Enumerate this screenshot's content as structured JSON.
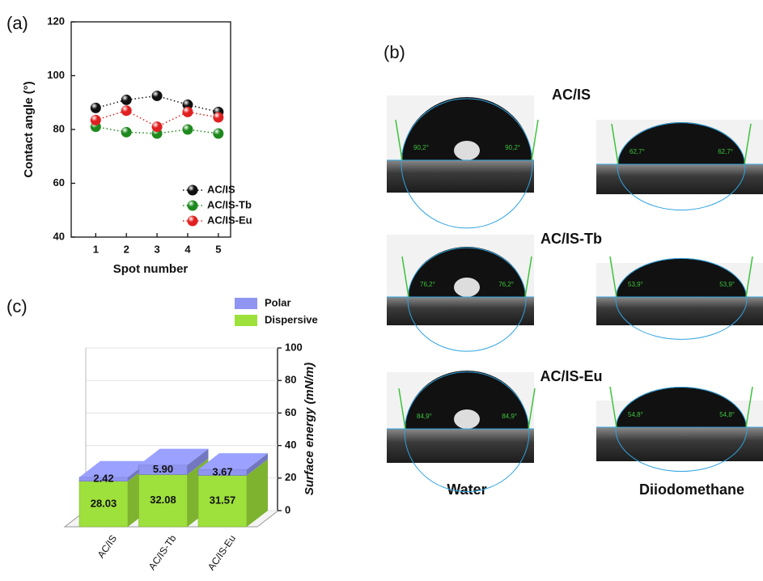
{
  "chart_data": [
    {
      "type": "line",
      "panel_label": "(a)",
      "x_label": "Spot number",
      "y_label": "Contact angle (°)",
      "x": [
        1,
        2,
        3,
        4,
        5
      ],
      "xlim": [
        0.2,
        5.4
      ],
      "xticks": [
        1,
        2,
        3,
        4,
        5
      ],
      "ylim": [
        40,
        120
      ],
      "yticks": [
        40,
        60,
        80,
        100,
        120
      ],
      "legend": "lower right",
      "series": [
        {
          "name": "AC/IS",
          "color": "#111111",
          "values": [
            88,
            91,
            92.5,
            89.2,
            86.5
          ]
        },
        {
          "name": "AC/IS-Tb",
          "color": "#1e8a1e",
          "values": [
            81,
            79,
            78.5,
            80,
            78.5
          ]
        },
        {
          "name": "AC/IS-Eu",
          "color": "#e02020",
          "values": [
            83.5,
            87,
            81,
            86.5,
            84.5
          ]
        }
      ]
    },
    {
      "type": "bar3d",
      "panel_label": "(c)",
      "y_label": "Surface energy (mN/m)",
      "categories": [
        "AC/IS",
        "AC/IS-Tb",
        "AC/IS-Eu"
      ],
      "ylim": [
        0,
        100
      ],
      "yticks": [
        0,
        20,
        40,
        60,
        80,
        100
      ],
      "legend": "upper right",
      "series": [
        {
          "name": "Dispersive",
          "color": "#9ee03c",
          "values": [
            28.03,
            32.08,
            31.57
          ],
          "value_labels": [
            "28.03",
            "32.08",
            "31.57"
          ]
        },
        {
          "name": "Polar",
          "color": "#8f95f0",
          "values": [
            2.42,
            5.9,
            3.67
          ],
          "value_labels": [
            "2.42",
            "5.90",
            "3.67"
          ]
        }
      ]
    }
  ],
  "panel_b": {
    "label": "(b)",
    "columns": [
      "Water",
      "Diiodomethane"
    ],
    "rows": [
      {
        "sample": "AC/IS",
        "water_angles": [
          "90,2°",
          "90,2°"
        ],
        "diiodomethane_angles": [
          "62,7°",
          "62,7°"
        ]
      },
      {
        "sample": "AC/IS-Tb",
        "water_angles": [
          "76,2°",
          "76,2°"
        ],
        "diiodomethane_angles": [
          "53,9°",
          "53,9°"
        ]
      },
      {
        "sample": "AC/IS-Eu",
        "water_angles": [
          "84,9°",
          "84,9°"
        ],
        "diiodomethane_angles": [
          "54,8°",
          "54,8°"
        ]
      }
    ]
  }
}
